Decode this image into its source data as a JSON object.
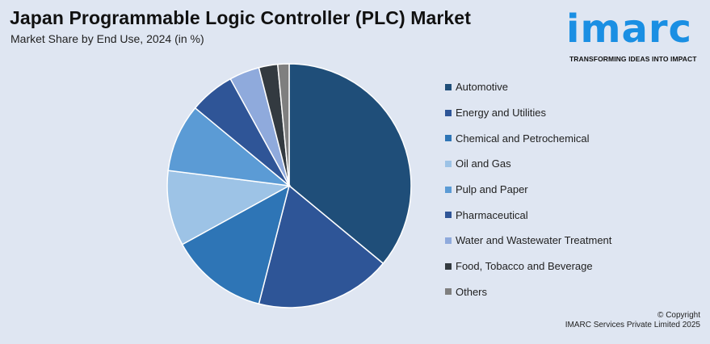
{
  "header": {
    "title": "Japan Programmable Logic Controller (PLC) Market",
    "subtitle": "Market Share by End Use, 2024 (in %)"
  },
  "logo": {
    "text": "imarc",
    "tagline": "TRANSFORMING IDEAS INTO IMPACT",
    "color": "#1a8fe3"
  },
  "chart_data": {
    "type": "pie",
    "title": "Japan Programmable Logic Controller (PLC) Market",
    "subtitle": "Market Share by End Use, 2024 (in %)",
    "legend_position": "right",
    "categories": [
      "Automotive",
      "Energy and Utilities",
      "Chemical and Petrochemical",
      "Oil and Gas",
      "Pulp and Paper",
      "Pharmaceutical",
      "Water and Wastewater Treatment",
      "Food, Tobacco and Beverage",
      "Others"
    ],
    "values": [
      36,
      18,
      13,
      10,
      9,
      6,
      4,
      2.5,
      1.5
    ],
    "colors": [
      "#1f4e79",
      "#2e5597",
      "#2e75b6",
      "#9dc3e6",
      "#5b9bd5",
      "#2f5597",
      "#8faadc",
      "#333a40",
      "#7f7f7f"
    ]
  },
  "footer": {
    "copyright_line1": "© Copyright",
    "copyright_line2": "IMARC Services Private Limited 2025"
  }
}
